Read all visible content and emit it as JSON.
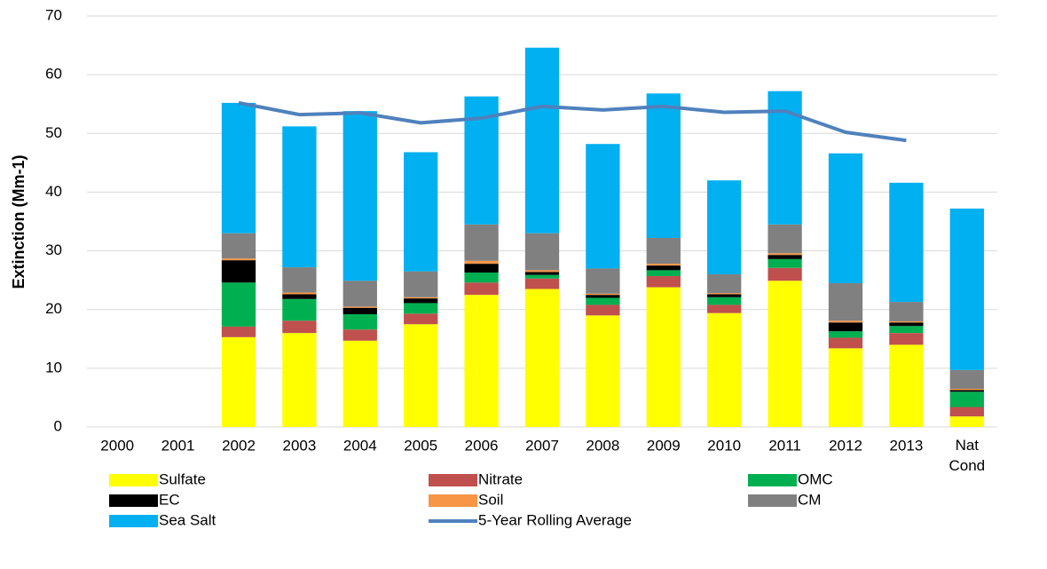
{
  "chart_data": {
    "type": "bar",
    "stacked": true,
    "categories": [
      "2000",
      "2001",
      "2002",
      "2003",
      "2004",
      "2005",
      "2006",
      "2007",
      "2008",
      "2009",
      "2010",
      "2011",
      "2012",
      "2013",
      "Nat Cond"
    ],
    "ylabel": "Extinction (Mm-1)",
    "ylim": [
      0,
      70
    ],
    "yticks": [
      0,
      10,
      20,
      30,
      40,
      50,
      60,
      70
    ],
    "grid": true,
    "legend": "bottom",
    "series": [
      {
        "name": "Sulfate",
        "color": "#FFFF00",
        "values": [
          null,
          null,
          15.3,
          16.0,
          14.7,
          17.5,
          22.5,
          23.5,
          19.0,
          23.8,
          19.4,
          24.9,
          13.4,
          14.0,
          1.8
        ]
      },
      {
        "name": "Nitrate",
        "color": "#C0504D",
        "values": [
          null,
          null,
          1.8,
          2.1,
          1.9,
          1.8,
          2.1,
          1.8,
          1.8,
          1.9,
          1.4,
          2.2,
          1.8,
          2.0,
          1.6
        ]
      },
      {
        "name": "OMC",
        "color": "#00B050",
        "values": [
          null,
          null,
          7.5,
          3.7,
          2.6,
          1.8,
          1.7,
          0.6,
          1.2,
          1.0,
          1.3,
          1.5,
          1.1,
          1.2,
          2.6
        ]
      },
      {
        "name": "EC",
        "color": "#000000",
        "values": [
          null,
          null,
          3.8,
          0.8,
          1.1,
          0.8,
          1.5,
          0.5,
          0.5,
          0.8,
          0.5,
          0.7,
          1.5,
          0.6,
          0.3
        ]
      },
      {
        "name": "Soil",
        "color": "#F79646",
        "values": [
          null,
          null,
          0.3,
          0.3,
          0.2,
          0.2,
          0.5,
          0.3,
          0.2,
          0.3,
          0.2,
          0.3,
          0.3,
          0.2,
          0.2
        ]
      },
      {
        "name": "CM",
        "color": "#808080",
        "values": [
          null,
          null,
          4.3,
          4.3,
          4.4,
          4.4,
          6.2,
          6.3,
          4.3,
          4.4,
          3.2,
          4.9,
          6.4,
          3.3,
          3.2
        ]
      },
      {
        "name": "Sea Salt",
        "color": "#00B0F0",
        "values": [
          null,
          null,
          22.2,
          24.0,
          28.9,
          20.3,
          21.8,
          31.6,
          21.2,
          24.6,
          16.0,
          22.7,
          22.1,
          20.3,
          27.5
        ]
      },
      {
        "name": "5-Year Rolling Average",
        "type": "line",
        "color": "#4F81BD",
        "values": [
          null,
          null,
          55.2,
          53.2,
          53.5,
          51.8,
          52.6,
          54.6,
          54.0,
          54.6,
          53.6,
          53.8,
          50.2,
          48.8,
          null
        ]
      }
    ]
  }
}
